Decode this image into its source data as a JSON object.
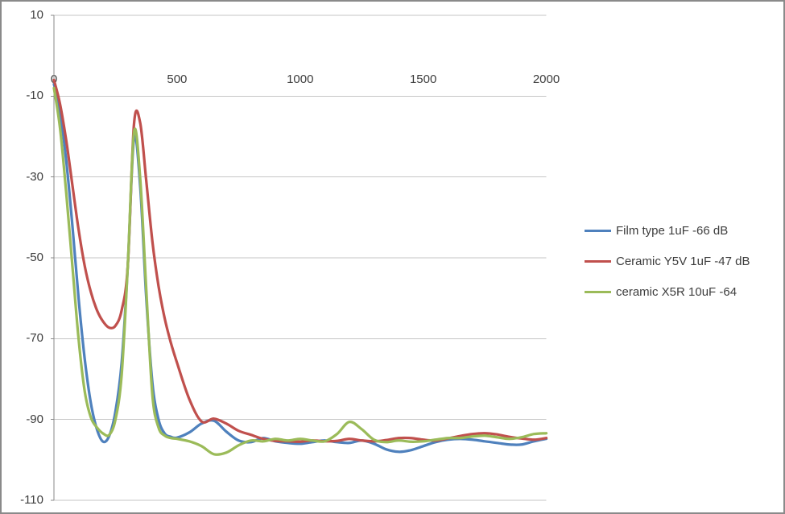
{
  "page": {
    "background": "#ffffff",
    "border_color": "#8a8a8a"
  },
  "chart_data": {
    "type": "line",
    "title": "",
    "xlabel": "",
    "ylabel": "",
    "grid": "horizontal",
    "legend_position": "right",
    "xlim": [
      0,
      2000
    ],
    "ylim": [
      -110,
      10
    ],
    "xticks": [
      0,
      500,
      1000,
      1500,
      2000
    ],
    "xtick_labels": [
      "0",
      "500",
      "1000",
      "1500",
      "2000"
    ],
    "yticks": [
      10,
      -10,
      -30,
      -50,
      -70,
      -90,
      -110
    ],
    "ytick_labels": [
      "10",
      "-10",
      "-30",
      "-50",
      "-70",
      "-90",
      "-110"
    ],
    "gridline_color": "#c6c6c6",
    "axis_color": "#8a8a8a",
    "x": [
      0,
      25,
      50,
      75,
      100,
      125,
      150,
      175,
      200,
      225,
      250,
      275,
      300,
      325,
      350,
      375,
      400,
      425,
      450,
      475,
      500,
      550,
      600,
      650,
      700,
      750,
      800,
      850,
      900,
      950,
      1000,
      1050,
      1100,
      1150,
      1200,
      1250,
      1300,
      1350,
      1400,
      1450,
      1500,
      1550,
      1600,
      1650,
      1700,
      1750,
      1800,
      1850,
      1900,
      1950,
      2000
    ],
    "series": [
      {
        "name": "Film type 1uF -66 dB",
        "color": "#4F81BD",
        "values": [
          -7,
          -14,
          -26,
          -42,
          -60,
          -75,
          -86,
          -92.5,
          -95.5,
          -94,
          -88,
          -76,
          -52,
          -20.5,
          -32,
          -60,
          -81,
          -90,
          -93.5,
          -94.3,
          -94.5,
          -93.2,
          -91,
          -90.3,
          -93,
          -95.2,
          -95.6,
          -94.6,
          -95.4,
          -95.8,
          -96,
          -95.6,
          -95.2,
          -95.6,
          -95.8,
          -95.2,
          -96,
          -97.4,
          -98,
          -97.6,
          -96.6,
          -95.6,
          -95,
          -94.8,
          -95,
          -95.4,
          -95.8,
          -96.2,
          -96.2,
          -95.4,
          -94.8
        ]
      },
      {
        "name": "Ceramic Y5V 1uF -47 dB",
        "color": "#C0504D",
        "values": [
          -6,
          -12,
          -21,
          -32,
          -43,
          -52,
          -58.5,
          -63,
          -65.8,
          -67.3,
          -66.8,
          -63,
          -52,
          -17,
          -16.5,
          -31,
          -46,
          -57,
          -65,
          -71,
          -76,
          -85,
          -90.5,
          -89.8,
          -91,
          -92.8,
          -93.8,
          -94.8,
          -95.3,
          -95.4,
          -95.5,
          -95.2,
          -95.4,
          -95.3,
          -94.8,
          -95.2,
          -95.4,
          -95.1,
          -94.6,
          -94.6,
          -95,
          -95.2,
          -94.7,
          -94.1,
          -93.6,
          -93.4,
          -93.7,
          -94.3,
          -94.7,
          -95,
          -94.6
        ]
      },
      {
        "name": "ceramic X5R 10uF -64",
        "color": "#9BBB59",
        "values": [
          -8,
          -18,
          -34,
          -52,
          -70,
          -83,
          -89.5,
          -92,
          -93.5,
          -93.8,
          -90,
          -79,
          -52,
          -19,
          -30,
          -58,
          -84,
          -92,
          -94,
          -94.6,
          -94.8,
          -95.4,
          -96.6,
          -98.6,
          -98.2,
          -96.4,
          -95.2,
          -95.4,
          -94.8,
          -95.2,
          -94.8,
          -95.2,
          -95.4,
          -93.6,
          -90.6,
          -92.4,
          -95,
          -95.6,
          -95.2,
          -95.5,
          -95.4,
          -95,
          -94.6,
          -94.6,
          -94.2,
          -94,
          -94.4,
          -94.8,
          -94.4,
          -93.6,
          -93.4
        ]
      }
    ]
  }
}
